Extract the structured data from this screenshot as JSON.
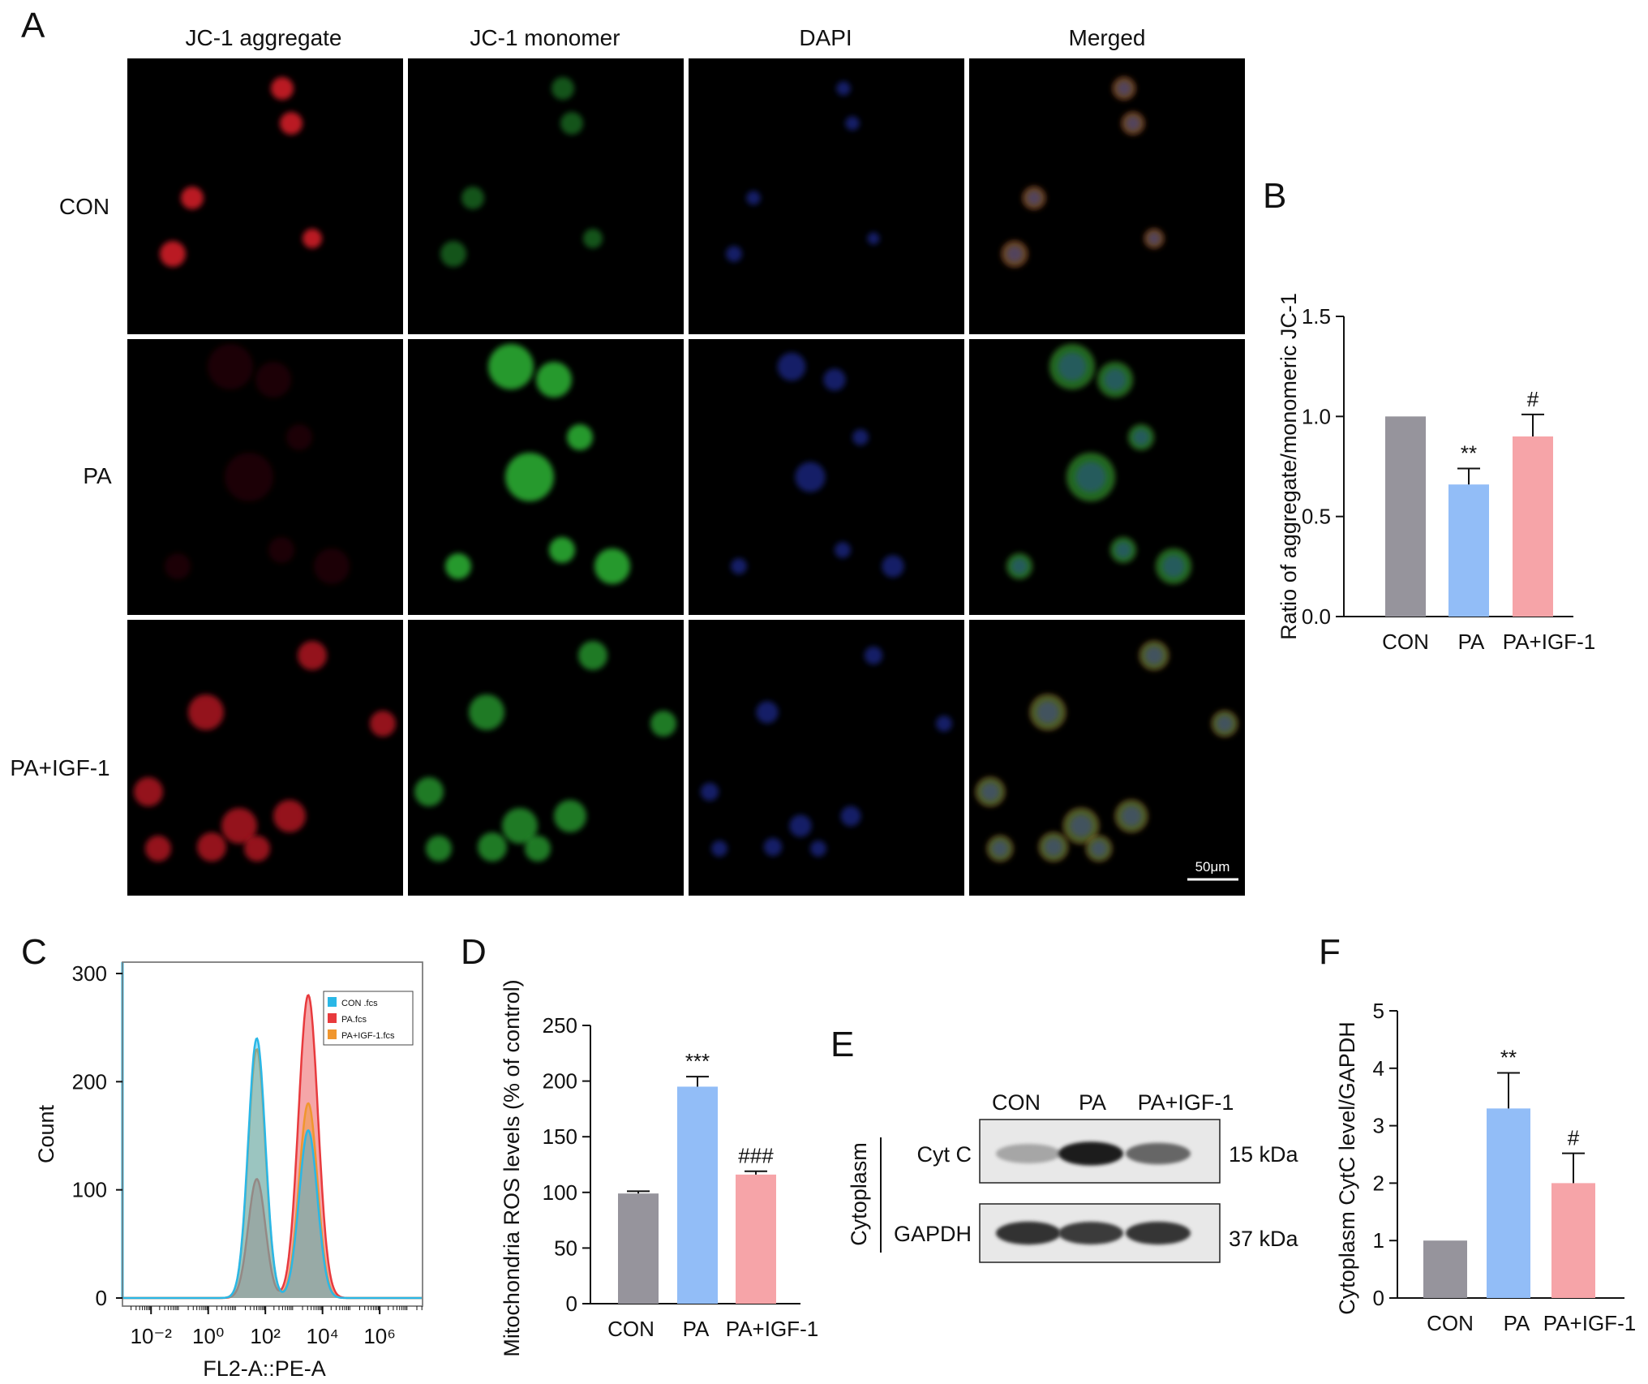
{
  "panel_labels": {
    "A": "A",
    "B": "B",
    "C": "C",
    "D": "D",
    "E": "E",
    "F": "F"
  },
  "microscopy": {
    "columns": [
      "JC-1 aggregate",
      "JC-1 monomer",
      "DAPI",
      "Merged"
    ],
    "rows": [
      "CON",
      "PA",
      "PA+IGF-1"
    ],
    "scale_bar": "50μm"
  },
  "western": {
    "lanes": [
      "CON",
      "PA",
      "PA+IGF-1"
    ],
    "compartment": "Cytoplasm",
    "bands": [
      {
        "protein": "Cyt C",
        "size": "15 kDa",
        "intensity": [
          0.25,
          0.9,
          0.55
        ]
      },
      {
        "protein": "GAPDH",
        "size": "37 kDa",
        "intensity": [
          0.8,
          0.75,
          0.78
        ]
      }
    ]
  },
  "chart_data": [
    {
      "id": "B",
      "type": "bar",
      "categories": [
        "CON",
        "PA",
        "PA+IGF-1"
      ],
      "values": [
        1.0,
        0.66,
        0.9
      ],
      "errors": [
        0,
        0.08,
        0.11
      ],
      "significance": [
        "",
        "**",
        "#"
      ],
      "ylabel": "Ratio of aggregate/monomeric JC-1",
      "ylim": [
        0,
        1.5
      ],
      "yticks": [
        "0.0",
        "0.5",
        "1.0",
        "1.5"
      ],
      "colors": [
        "#96949c",
        "#92bdf7",
        "#f6a4a8"
      ]
    },
    {
      "id": "C",
      "type": "area",
      "xlabel": "FL2-A::PE-A",
      "ylabel": "Count",
      "xscale": "log",
      "xlim_log10": [
        -3,
        7.5
      ],
      "xticks": [
        "10⁻²",
        "10⁰",
        "10²",
        "10⁴",
        "10⁶"
      ],
      "ylim": [
        0,
        300
      ],
      "yticks": [
        "0",
        "100",
        "200",
        "300"
      ],
      "legend": "top-right",
      "series": [
        {
          "name": "CON .fcs",
          "color": "#2ab7e6",
          "peaks": [
            {
              "log10": 1.7,
              "count": 240,
              "width": 0.3
            },
            {
              "log10": 3.5,
              "count": 155,
              "width": 0.32
            }
          ]
        },
        {
          "name": "PA.fcs",
          "color": "#e83a3d",
          "peaks": [
            {
              "log10": 1.7,
              "count": 110,
              "width": 0.3
            },
            {
              "log10": 3.5,
              "count": 280,
              "width": 0.34
            }
          ]
        },
        {
          "name": "PA+IGF-1.fcs",
          "color": "#f0962e",
          "peaks": [
            {
              "log10": 1.7,
              "count": 230,
              "width": 0.3
            },
            {
              "log10": 3.5,
              "count": 180,
              "width": 0.32
            }
          ]
        }
      ]
    },
    {
      "id": "D",
      "type": "bar",
      "categories": [
        "CON",
        "PA",
        "PA+IGF-1"
      ],
      "values": [
        99,
        195,
        116
      ],
      "errors": [
        2,
        9,
        3
      ],
      "significance": [
        "",
        "***",
        "###"
      ],
      "ylabel": "Mitochondria ROS levels (% of control)",
      "ylim": [
        0,
        250
      ],
      "yticks": [
        "0",
        "50",
        "100",
        "150",
        "200",
        "250"
      ],
      "colors": [
        "#96949c",
        "#92bdf7",
        "#f6a4a8"
      ]
    },
    {
      "id": "F",
      "type": "bar",
      "categories": [
        "CON",
        "PA",
        "PA+IGF-1"
      ],
      "values": [
        1.0,
        3.3,
        2.0
      ],
      "errors": [
        0,
        0.62,
        0.52
      ],
      "significance": [
        "",
        "**",
        "#"
      ],
      "ylabel": "Cytoplasm CytC level/GAPDH",
      "ylim": [
        0,
        5
      ],
      "yticks": [
        "0",
        "1",
        "2",
        "3",
        "4",
        "5"
      ],
      "colors": [
        "#96949c",
        "#92bdf7",
        "#f6a4a8"
      ]
    }
  ]
}
